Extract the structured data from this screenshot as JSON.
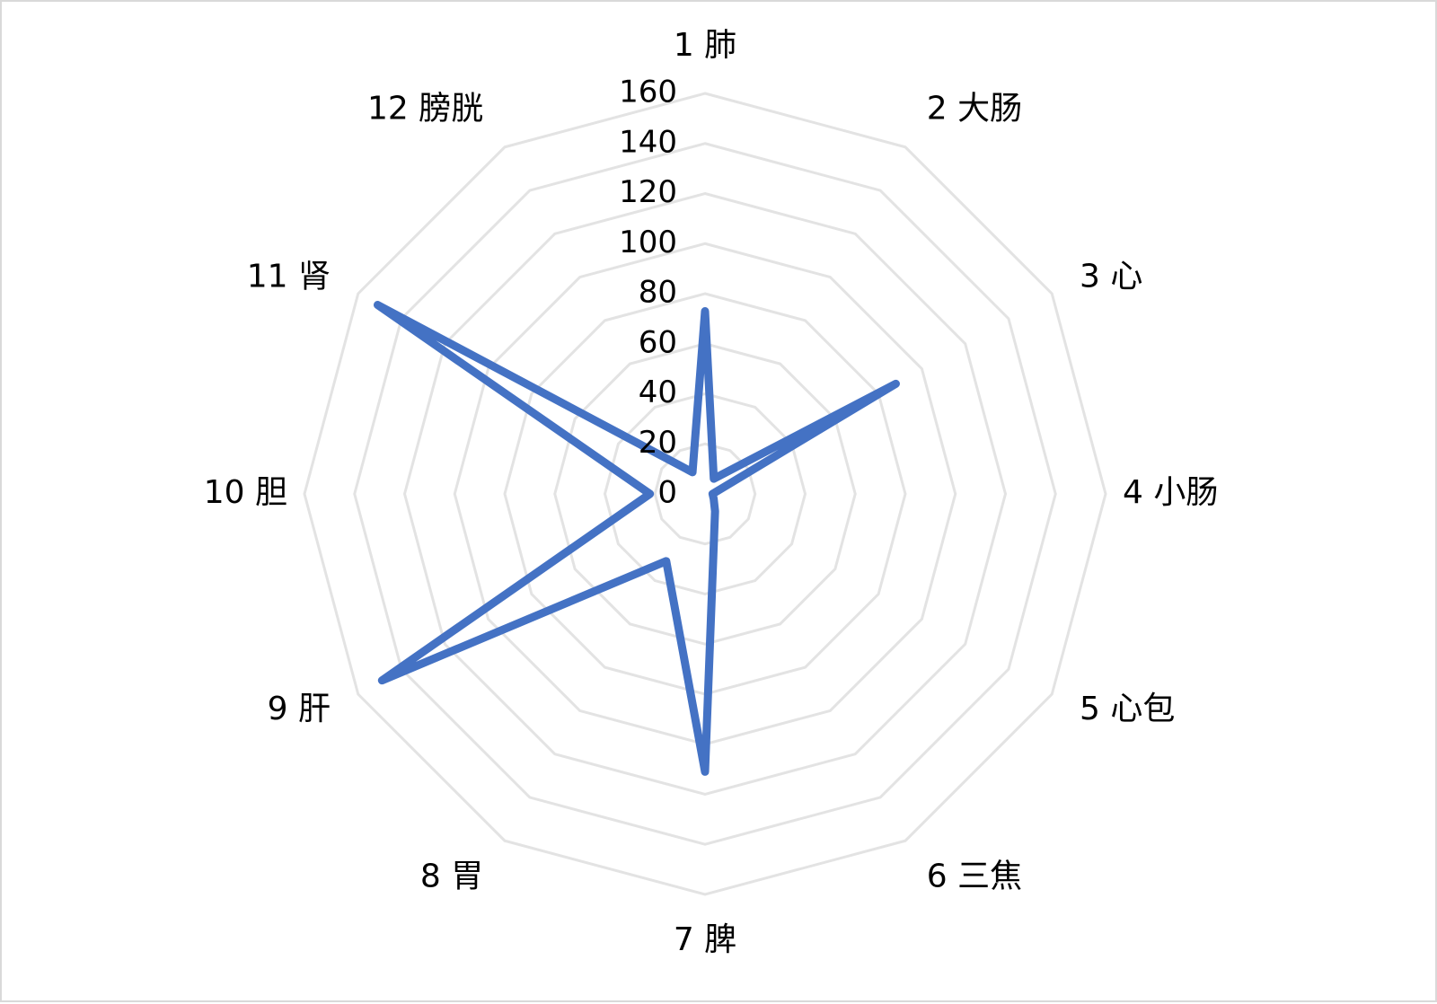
{
  "chart_data": {
    "type": "radar",
    "categories": [
      "1 肺",
      "2 大肠",
      "3 心",
      "4 小肠",
      "5 心包",
      "6 三焦",
      "7 脾",
      "8 胃",
      "9 肝",
      "10 胆",
      "11 肾",
      "12 膀胱"
    ],
    "values": [
      73,
      7,
      88,
      3,
      4,
      8,
      111,
      31,
      149,
      22,
      151,
      10
    ],
    "color": "#4472c4",
    "ylim": [
      0,
      160
    ],
    "yticks": [
      0,
      20,
      40,
      60,
      80,
      100,
      120,
      140,
      160
    ],
    "grid": true
  }
}
